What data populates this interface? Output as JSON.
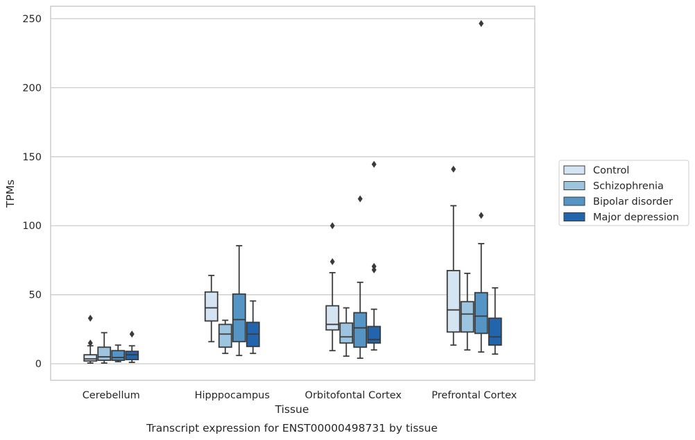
{
  "caption": "Transcript expression for ENST00000498731 by tissue",
  "colors": {
    "Control": "#d5e4f3",
    "Schizophrenia": "#9dc5e0",
    "Bipolar disorder": "#5495c6",
    "Major depression": "#2265ad",
    "grid": "#cccccc",
    "box_edge": "#3a3a3a"
  },
  "chart_data": {
    "type": "box",
    "title": "",
    "xlabel": "Tissue",
    "ylabel": "TPMs",
    "ylim": [
      -12,
      259
    ],
    "yticks": [
      0,
      50,
      100,
      150,
      200,
      250
    ],
    "grid": true,
    "legend_position": "right-outside",
    "categories": [
      "Cerebellum",
      "Hipppocampus",
      "Orbitofontal Cortex",
      "Prefrontal Cortex"
    ],
    "series": [
      {
        "name": "Control",
        "boxes": [
          {
            "whislo": 0.5,
            "q1": 2,
            "med": 3.5,
            "q3": 6.5,
            "whishi": 13,
            "fliers": [
              15,
              33
            ]
          },
          {
            "whislo": 16,
            "q1": 31,
            "med": 40.5,
            "q3": 52,
            "whishi": 64,
            "fliers": []
          },
          {
            "whislo": 9.5,
            "q1": 24.5,
            "med": 28.5,
            "q3": 42,
            "whishi": 66,
            "fliers": [
              74,
              100
            ]
          },
          {
            "whislo": 13.5,
            "q1": 23,
            "med": 39,
            "q3": 67.5,
            "whishi": 114.5,
            "fliers": [
              141
            ]
          }
        ]
      },
      {
        "name": "Schizophrenia",
        "boxes": [
          {
            "whislo": 0.5,
            "q1": 2.5,
            "med": 5,
            "q3": 12,
            "whishi": 22.5,
            "fliers": []
          },
          {
            "whislo": 7.5,
            "q1": 12,
            "med": 21.5,
            "q3": 28.5,
            "whishi": 31.5,
            "fliers": []
          },
          {
            "whislo": 5.5,
            "q1": 15,
            "med": 19.5,
            "q3": 29.5,
            "whishi": 40.5,
            "fliers": []
          },
          {
            "whislo": 10,
            "q1": 23,
            "med": 36,
            "q3": 45,
            "whishi": 65.5,
            "fliers": []
          }
        ]
      },
      {
        "name": "Bipolar disorder",
        "boxes": [
          {
            "whislo": 1.5,
            "q1": 2.5,
            "med": 4.5,
            "q3": 9.5,
            "whishi": 13.5,
            "fliers": []
          },
          {
            "whislo": 6,
            "q1": 16,
            "med": 32,
            "q3": 50.5,
            "whishi": 85.5,
            "fliers": []
          },
          {
            "whislo": 4,
            "q1": 12,
            "med": 26,
            "q3": 37,
            "whishi": 59,
            "fliers": [
              119.5
            ]
          },
          {
            "whislo": 8.5,
            "q1": 22,
            "med": 34.5,
            "q3": 51.5,
            "whishi": 87,
            "fliers": [
              107.5,
              246.5
            ]
          }
        ]
      },
      {
        "name": "Major depression",
        "boxes": [
          {
            "whislo": 1,
            "q1": 3,
            "med": 6.5,
            "q3": 9,
            "whishi": 13,
            "fliers": [
              21.5
            ]
          },
          {
            "whislo": 7.5,
            "q1": 12.5,
            "med": 21.5,
            "q3": 30,
            "whishi": 45.5,
            "fliers": []
          },
          {
            "whislo": 10,
            "q1": 15,
            "med": 17.5,
            "q3": 27,
            "whishi": 39.5,
            "fliers": [
              68,
              70.5,
              144.5
            ]
          },
          {
            "whislo": 7,
            "q1": 13.5,
            "med": 19.5,
            "q3": 33,
            "whishi": 55,
            "fliers": []
          }
        ]
      }
    ]
  }
}
